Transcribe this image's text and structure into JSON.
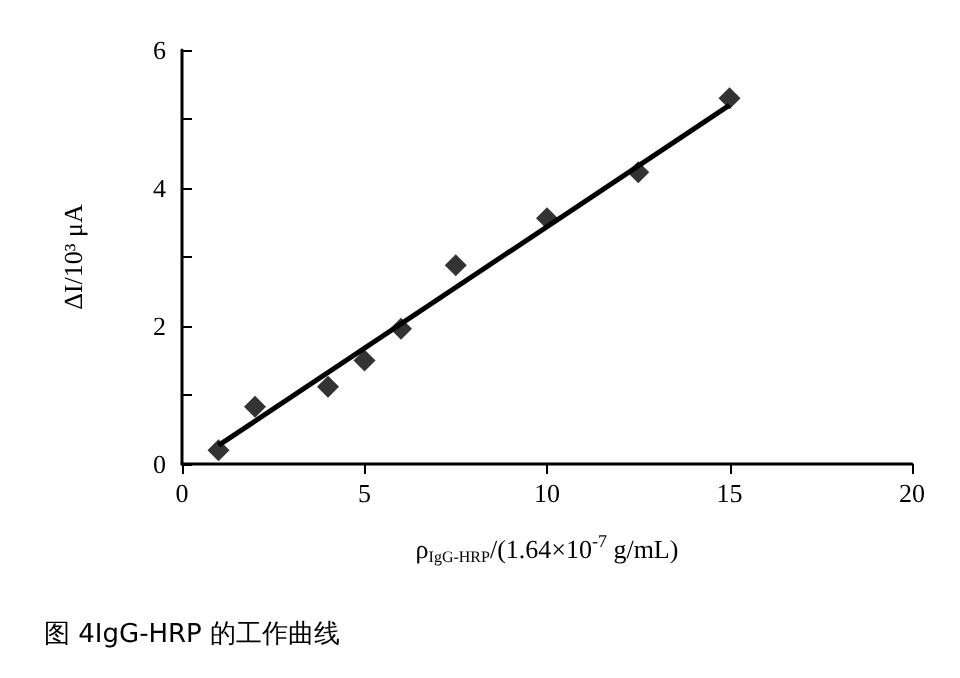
{
  "chart_data": {
    "type": "scatter",
    "xlabel": "ρ$_{IgG-HRP}$/(1.64×10$^{-7}$ g/mL)",
    "ylabel": "ΔI/10³ μA",
    "annotations": [
      "图 4IgG-HRP 的工作曲线"
    ],
    "xlim": [
      0,
      20
    ],
    "xticks": [
      0,
      5,
      10,
      15,
      20
    ],
    "ylim": [
      0,
      6
    ],
    "yticks": [
      0,
      {
        "value": 1,
        "label": null
      },
      2,
      {
        "value": 3,
        "label": null
      },
      4,
      {
        "value": 5,
        "label": null
      },
      6
    ],
    "grid": false,
    "marker": "diamond",
    "series": [
      {
        "color": "#000000",
        "x": [
          1,
          2,
          4,
          5,
          6,
          7.5,
          10,
          12.5,
          15
        ],
        "values": [
          0.2,
          0.83,
          1.12,
          1.5,
          1.96,
          2.88,
          3.56,
          4.23,
          5.3
        ]
      },
      {
        "type": "line",
        "color": "#000000",
        "marker": "none",
        "line_style": "solid",
        "x": [
          1,
          15
        ],
        "values": [
          0.27,
          5.2
        ]
      }
    ]
  }
}
